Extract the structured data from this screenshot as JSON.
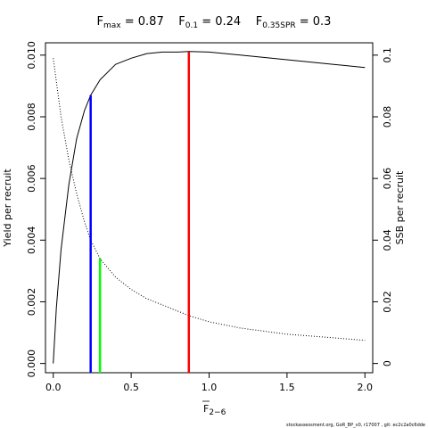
{
  "chart_data": {
    "type": "line",
    "title": {
      "parts": [
        {
          "base": "F",
          "sub": "max",
          "rest": " = 0.87"
        },
        {
          "base": "F",
          "sub": "0.1",
          "rest": " = 0.24"
        },
        {
          "base": "F",
          "sub": "0.35SPR",
          "rest": " = 0.3"
        }
      ]
    },
    "xlabel": {
      "base": "F",
      "sub": "2−6",
      "overline": true
    },
    "ylabel_left": "Yield per recruit",
    "ylabel_right": "SSB per recruit",
    "xlim": [
      -0.05,
      2.05
    ],
    "ylim_left": [
      -0.0003,
      0.0104
    ],
    "ylim_right": [
      -0.003,
      0.104
    ],
    "x_ticks": [
      {
        "v": 0,
        "label": "0.0"
      },
      {
        "v": 0.5,
        "label": "0.5"
      },
      {
        "v": 1,
        "label": "1.0"
      },
      {
        "v": 1.5,
        "label": "1.5"
      },
      {
        "v": 2,
        "label": "2.0"
      }
    ],
    "y_ticks_left": [
      {
        "v": 0,
        "label": "0.000"
      },
      {
        "v": 0.002,
        "label": "0.002"
      },
      {
        "v": 0.004,
        "label": "0.004"
      },
      {
        "v": 0.006,
        "label": "0.006"
      },
      {
        "v": 0.008,
        "label": "0.008"
      },
      {
        "v": 0.01,
        "label": "0.010"
      }
    ],
    "y_ticks_right": [
      {
        "v": 0,
        "label": "0"
      },
      {
        "v": 0.02,
        "label": "0.02"
      },
      {
        "v": 0.04,
        "label": "0.04"
      },
      {
        "v": 0.06,
        "label": "0.06"
      },
      {
        "v": 0.08,
        "label": "0.08"
      },
      {
        "v": 0.1,
        "label": "0.1"
      }
    ],
    "series": [
      {
        "axis": "left",
        "style": "solid",
        "color": "#000000",
        "x": [
          0,
          0.02,
          0.05,
          0.1,
          0.15,
          0.2,
          0.24,
          0.3,
          0.4,
          0.5,
          0.6,
          0.7,
          0.8,
          0.87,
          1.0,
          1.2,
          1.4,
          1.6,
          1.8,
          2.0
        ],
        "y": [
          0,
          0.0018,
          0.0037,
          0.0058,
          0.0073,
          0.0082,
          0.0087,
          0.0092,
          0.0097,
          0.0099,
          0.01005,
          0.0101,
          0.0101,
          0.01012,
          0.0101,
          0.01,
          0.0099,
          0.0098,
          0.0097,
          0.0096
        ]
      },
      {
        "axis": "right",
        "style": "dotted",
        "color": "#000000",
        "x": [
          0,
          0.05,
          0.1,
          0.15,
          0.2,
          0.24,
          0.3,
          0.4,
          0.5,
          0.6,
          0.7,
          0.87,
          1.0,
          1.2,
          1.5,
          1.8,
          2.0
        ],
        "y": [
          0.099,
          0.08,
          0.066,
          0.055,
          0.046,
          0.04,
          0.034,
          0.028,
          0.024,
          0.021,
          0.019,
          0.0155,
          0.0135,
          0.0115,
          0.0095,
          0.0083,
          0.0075
        ]
      }
    ],
    "reference_lines": [
      {
        "x": 0.24,
        "y": 0.0087,
        "axis": "left",
        "color": "#0000ff"
      },
      {
        "x": 0.3,
        "y": 0.034,
        "axis": "right",
        "color": "#00ff00"
      },
      {
        "x": 0.87,
        "y": 0.0101,
        "axis": "left",
        "color": "#ff0000"
      }
    ],
    "grid": false,
    "legend": "none"
  },
  "footer": "stockassessment.org, GoR_BP_v0, r17007 , git: ec2c2a0c6dde"
}
